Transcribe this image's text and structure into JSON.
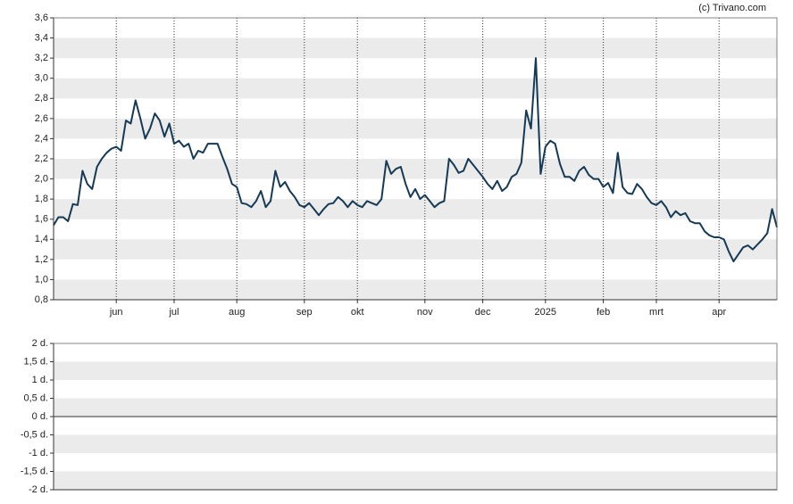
{
  "chart_data": [
    {
      "type": "line",
      "credit": "(c) Trivano.com",
      "categories": [
        null,
        null,
        null,
        null,
        null,
        null,
        null,
        null,
        null,
        null,
        null,
        null,
        null,
        "jun",
        null,
        null,
        null,
        null,
        null,
        null,
        null,
        null,
        null,
        null,
        null,
        "jul",
        null,
        null,
        null,
        null,
        null,
        null,
        null,
        null,
        null,
        null,
        null,
        null,
        "aug",
        null,
        null,
        null,
        null,
        null,
        null,
        null,
        null,
        null,
        null,
        null,
        null,
        null,
        "sep",
        null,
        null,
        null,
        null,
        null,
        null,
        null,
        null,
        null,
        null,
        "okt",
        null,
        null,
        null,
        null,
        null,
        null,
        null,
        null,
        null,
        null,
        null,
        null,
        null,
        "nov",
        null,
        null,
        null,
        null,
        null,
        null,
        null,
        null,
        null,
        null,
        null,
        "dec",
        null,
        null,
        null,
        null,
        null,
        null,
        null,
        null,
        null,
        null,
        null,
        null,
        "2025",
        null,
        null,
        null,
        null,
        null,
        null,
        null,
        null,
        null,
        null,
        null,
        "feb",
        null,
        null,
        null,
        null,
        null,
        null,
        null,
        null,
        null,
        null,
        "mrt",
        null,
        null,
        null,
        null,
        null,
        null,
        null,
        null,
        null,
        null,
        null,
        null,
        "apr",
        null,
        null,
        null,
        null,
        null,
        null,
        null,
        null,
        null,
        null,
        null,
        null
      ],
      "series": [
        {
          "color": "#163a55",
          "values": [
            1.54,
            1.62,
            1.62,
            1.58,
            1.75,
            1.74,
            2.08,
            1.95,
            1.9,
            2.12,
            2.2,
            2.26,
            2.3,
            2.32,
            2.28,
            2.58,
            2.55,
            2.78,
            2.6,
            2.4,
            2.5,
            2.65,
            2.58,
            2.42,
            2.55,
            2.35,
            2.38,
            2.32,
            2.35,
            2.2,
            2.28,
            2.26,
            2.35,
            2.35,
            2.35,
            2.22,
            2.1,
            1.95,
            1.92,
            1.76,
            1.75,
            1.72,
            1.78,
            1.88,
            1.72,
            1.78,
            2.08,
            1.92,
            1.97,
            1.88,
            1.82,
            1.74,
            1.72,
            1.76,
            1.7,
            1.64,
            1.7,
            1.75,
            1.76,
            1.82,
            1.78,
            1.72,
            1.78,
            1.74,
            1.72,
            1.78,
            1.76,
            1.74,
            1.8,
            2.18,
            2.05,
            2.1,
            2.12,
            1.95,
            1.82,
            1.9,
            1.8,
            1.84,
            1.78,
            1.72,
            1.76,
            1.78,
            2.2,
            2.14,
            2.06,
            2.08,
            2.2,
            2.14,
            2.08,
            2.02,
            1.95,
            1.9,
            1.98,
            1.88,
            1.92,
            2.02,
            2.05,
            2.16,
            2.68,
            2.5,
            3.2,
            2.05,
            2.32,
            2.38,
            2.35,
            2.15,
            2.02,
            2.02,
            1.98,
            2.08,
            2.12,
            2.04,
            2.0,
            2.0,
            1.92,
            1.96,
            1.86,
            2.26,
            1.92,
            1.86,
            1.85,
            1.95,
            1.9,
            1.82,
            1.76,
            1.74,
            1.78,
            1.72,
            1.62,
            1.68,
            1.64,
            1.66,
            1.58,
            1.56,
            1.56,
            1.48,
            1.44,
            1.42,
            1.42,
            1.4,
            1.28,
            1.18,
            1.25,
            1.32,
            1.34,
            1.3,
            1.35,
            1.4,
            1.46,
            1.7,
            1.52
          ]
        }
      ],
      "ylim": [
        0.8,
        3.6
      ],
      "yticks": [
        {
          "value": 0.8,
          "label": "0,8"
        },
        {
          "value": 1.0,
          "label": "1,0"
        },
        {
          "value": 1.2,
          "label": "1,2"
        },
        {
          "value": 1.4,
          "label": "1,4"
        },
        {
          "value": 1.6,
          "label": "1,6"
        },
        {
          "value": 1.8,
          "label": "1,8"
        },
        {
          "value": 2.0,
          "label": "2,0"
        },
        {
          "value": 2.2,
          "label": "2,2"
        },
        {
          "value": 2.4,
          "label": "2,4"
        },
        {
          "value": 2.6,
          "label": "2,6"
        },
        {
          "value": 2.8,
          "label": "2,8"
        },
        {
          "value": 3.0,
          "label": "3,0"
        },
        {
          "value": 3.2,
          "label": "3,2"
        },
        {
          "value": 3.4,
          "label": "3,4"
        },
        {
          "value": 3.6,
          "label": "3,6"
        }
      ],
      "grid": true
    },
    {
      "type": "line",
      "series": [],
      "ylim": [
        -2,
        2
      ],
      "yticks": [
        {
          "value": -2,
          "label": "-2 d."
        },
        {
          "value": -1.5,
          "label": "-1,5 d."
        },
        {
          "value": -1,
          "label": "-1 d."
        },
        {
          "value": -0.5,
          "label": "-0,5 d."
        },
        {
          "value": 0,
          "label": "0 d."
        },
        {
          "value": 0.5,
          "label": "0,5 d."
        },
        {
          "value": 1,
          "label": "1 d."
        },
        {
          "value": 1.5,
          "label": "1,5 d."
        },
        {
          "value": 2,
          "label": "2 d."
        }
      ],
      "grid": true
    }
  ]
}
